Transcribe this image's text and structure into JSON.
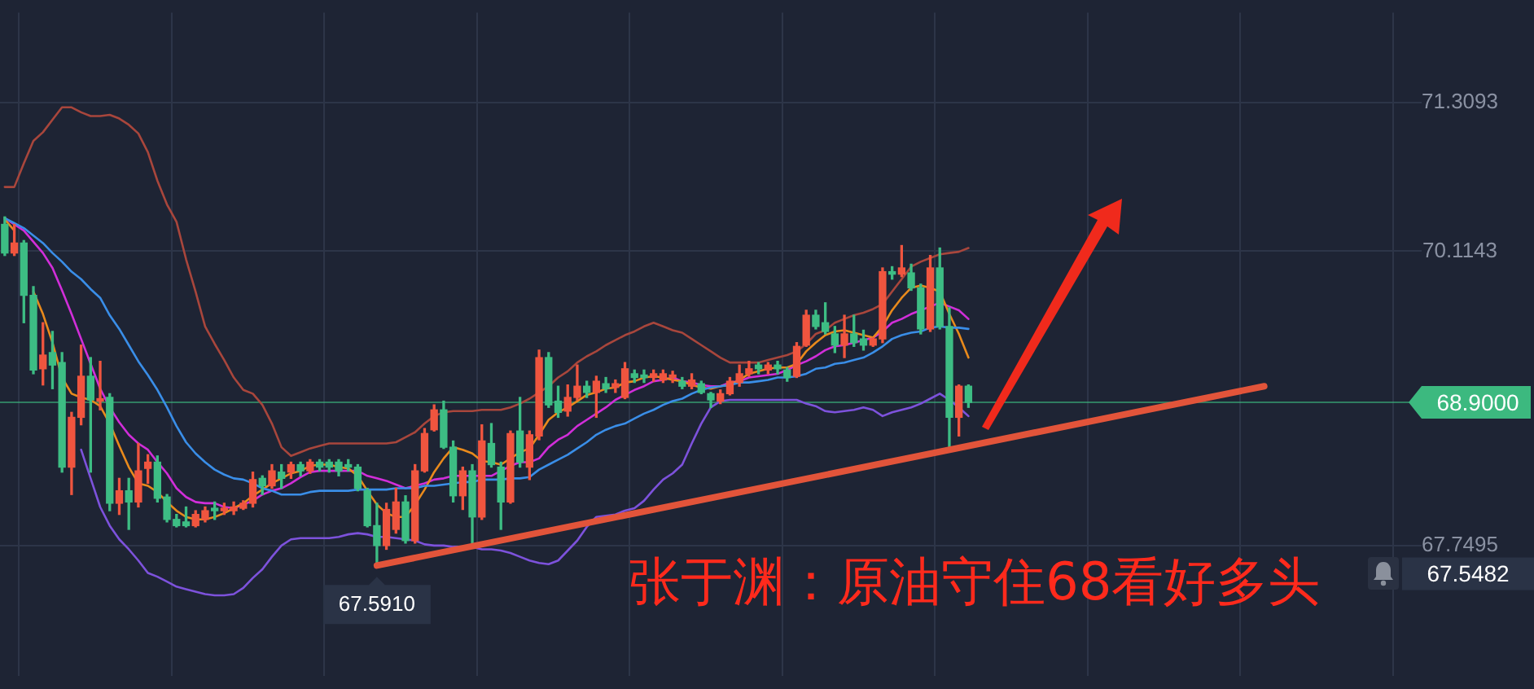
{
  "chart_data": {
    "type": "candlestick",
    "title": "张于渊：原油守住68看好多头",
    "categories": [
      null,
      null,
      null,
      null,
      null,
      null,
      null,
      null,
      null,
      null,
      null,
      null,
      null,
      null,
      null,
      null,
      null,
      null,
      null,
      null,
      null,
      null,
      null,
      null,
      null,
      null,
      null,
      null,
      null,
      null,
      null,
      null,
      null,
      null,
      null,
      null,
      null,
      null,
      null,
      null,
      null,
      null,
      null,
      null,
      null,
      null,
      null,
      null,
      null,
      null,
      null,
      null,
      null,
      null,
      null,
      null,
      null,
      null,
      null,
      null,
      null,
      null,
      null,
      null,
      null,
      null,
      null,
      null,
      null,
      null,
      null,
      null,
      null,
      null,
      null,
      null,
      null,
      null,
      null,
      null,
      null,
      null,
      null,
      null,
      null,
      null,
      null,
      null,
      null,
      null,
      null,
      null,
      null,
      null,
      null,
      null,
      null,
      null,
      null,
      null,
      null,
      null,
      null,
      null,
      null,
      null,
      null,
      null,
      null,
      null,
      null,
      null,
      null,
      null,
      null,
      null,
      null,
      null,
      null,
      null,
      null,
      null,
      null,
      null,
      null,
      null,
      null,
      null,
      null,
      null,
      null,
      null,
      null,
      null,
      null,
      null,
      null,
      null,
      null,
      null,
      null,
      null,
      null,
      null,
      null,
      null,
      null,
      null,
      null
    ],
    "ohlc": [
      [
        70.33,
        70.39,
        70.08,
        70.1
      ],
      [
        70.1,
        70.33,
        70.08,
        70.18
      ],
      [
        70.18,
        70.2,
        69.54,
        69.76
      ],
      [
        69.76,
        69.83,
        69.13,
        69.16
      ],
      [
        69.17,
        69.54,
        69.04,
        69.28
      ],
      [
        69.3,
        69.47,
        69.01,
        69.2
      ],
      [
        69.22,
        69.3,
        68.34,
        68.38
      ],
      [
        68.38,
        68.82,
        68.16,
        68.78
      ],
      [
        68.78,
        69.36,
        68.72,
        69.11
      ],
      [
        69.11,
        69.26,
        68.34,
        68.92
      ],
      [
        68.91,
        69.23,
        68.84,
        68.93
      ],
      [
        68.94,
        68.97,
        68.03,
        68.09
      ],
      [
        68.09,
        68.29,
        68.0,
        68.19
      ],
      [
        68.19,
        68.29,
        67.88,
        68.1
      ],
      [
        68.1,
        68.57,
        68.06,
        68.35
      ],
      [
        68.37,
        68.48,
        68.25,
        68.42
      ],
      [
        68.42,
        68.47,
        68.1,
        68.13
      ],
      [
        68.14,
        68.16,
        67.94,
        67.96
      ],
      [
        67.96,
        68.0,
        67.9,
        67.91
      ],
      [
        67.94,
        68.06,
        67.9,
        67.91
      ],
      [
        67.91,
        68.03,
        67.9,
        68.0
      ],
      [
        67.96,
        68.06,
        67.94,
        68.03
      ],
      [
        68.05,
        68.1,
        67.96,
        68.03
      ],
      [
        68.03,
        68.09,
        68.0,
        68.05
      ],
      [
        68.03,
        68.1,
        68.0,
        68.06
      ],
      [
        68.05,
        68.11,
        68.04,
        68.09
      ],
      [
        68.09,
        68.34,
        68.06,
        68.28
      ],
      [
        68.29,
        68.31,
        68.16,
        68.23
      ],
      [
        68.23,
        68.4,
        68.21,
        68.35
      ],
      [
        68.34,
        68.4,
        68.21,
        68.29
      ],
      [
        68.34,
        68.42,
        68.29,
        68.4
      ],
      [
        68.4,
        68.42,
        68.31,
        68.35
      ],
      [
        68.35,
        68.44,
        68.33,
        68.42
      ],
      [
        68.42,
        68.44,
        68.35,
        68.38
      ],
      [
        68.42,
        68.44,
        68.34,
        68.38
      ],
      [
        68.42,
        68.44,
        68.31,
        68.35
      ],
      [
        68.4,
        68.44,
        68.35,
        68.38
      ],
      [
        68.38,
        68.4,
        68.19,
        68.21
      ],
      [
        68.19,
        68.21,
        67.9,
        67.91
      ],
      [
        67.91,
        68.09,
        67.591,
        67.75
      ],
      [
        67.75,
        68.09,
        67.72,
        68.04
      ],
      [
        67.88,
        68.21,
        67.85,
        68.1
      ],
      [
        68.1,
        68.15,
        67.77,
        67.79
      ],
      [
        67.79,
        68.4,
        67.77,
        68.35
      ],
      [
        68.35,
        68.69,
        68.34,
        68.65
      ],
      [
        68.68,
        68.88,
        68.67,
        68.84
      ],
      [
        68.84,
        68.91,
        68.53,
        68.54
      ],
      [
        68.54,
        68.59,
        68.1,
        68.15
      ],
      [
        68.15,
        68.38,
        68.04,
        68.35
      ],
      [
        68.35,
        68.4,
        67.75,
        67.98
      ],
      [
        67.98,
        68.72,
        67.96,
        68.59
      ],
      [
        68.57,
        68.73,
        68.38,
        68.4
      ],
      [
        68.38,
        68.42,
        67.88,
        68.1
      ],
      [
        68.1,
        68.67,
        68.09,
        68.65
      ],
      [
        68.67,
        68.94,
        68.38,
        68.42
      ],
      [
        68.38,
        68.67,
        68.28,
        68.64
      ],
      [
        68.63,
        69.32,
        68.6,
        69.26
      ],
      [
        69.26,
        69.3,
        68.86,
        68.88
      ],
      [
        68.91,
        69.03,
        68.78,
        68.82
      ],
      [
        68.83,
        69.04,
        68.79,
        68.94
      ],
      [
        68.94,
        69.2,
        68.92,
        69.03
      ],
      [
        69.03,
        69.07,
        68.94,
        68.98
      ],
      [
        68.98,
        69.11,
        68.78,
        69.07
      ],
      [
        69.05,
        69.1,
        68.98,
        69.01
      ],
      [
        69.02,
        69.08,
        68.98,
        69.05
      ],
      [
        68.94,
        69.22,
        68.93,
        69.17
      ],
      [
        69.13,
        69.16,
        69.06,
        69.1
      ],
      [
        69.12,
        69.16,
        69.06,
        69.1
      ],
      [
        69.1,
        69.16,
        69.07,
        69.13
      ],
      [
        69.08,
        69.16,
        69.06,
        69.13
      ],
      [
        69.1,
        69.15,
        69.06,
        69.12
      ],
      [
        69.07,
        69.1,
        69.01,
        69.03
      ],
      [
        69.03,
        69.13,
        69.01,
        69.08
      ],
      [
        69.05,
        69.07,
        68.97,
        68.98
      ],
      [
        68.97,
        68.98,
        68.86,
        68.92
      ],
      [
        68.91,
        69.0,
        68.89,
        68.97
      ],
      [
        68.97,
        69.1,
        68.96,
        69.07
      ],
      [
        69.06,
        69.2,
        69.03,
        69.13
      ],
      [
        69.13,
        69.23,
        69.11,
        69.17
      ],
      [
        69.2,
        69.22,
        69.13,
        69.17
      ],
      [
        69.16,
        69.22,
        69.13,
        69.2
      ],
      [
        69.2,
        69.23,
        69.13,
        69.17
      ],
      [
        69.16,
        69.18,
        69.07,
        69.1
      ],
      [
        69.11,
        69.38,
        69.1,
        69.35
      ],
      [
        69.36,
        69.64,
        69.35,
        69.6
      ],
      [
        69.6,
        69.64,
        69.49,
        69.51
      ],
      [
        69.54,
        69.7,
        69.45,
        69.47
      ],
      [
        69.45,
        69.51,
        69.3,
        69.36
      ],
      [
        69.36,
        69.6,
        69.26,
        69.45
      ],
      [
        69.45,
        69.6,
        69.35,
        69.38
      ],
      [
        69.41,
        69.48,
        69.32,
        69.36
      ],
      [
        69.36,
        69.42,
        69.35,
        69.41
      ],
      [
        69.41,
        69.98,
        69.38,
        69.95
      ],
      [
        69.95,
        69.99,
        69.89,
        69.93
      ],
      [
        69.93,
        70.16,
        69.91,
        69.98
      ],
      [
        69.94,
        70.01,
        69.8,
        69.82
      ],
      [
        69.82,
        69.85,
        69.45,
        69.49
      ],
      [
        69.49,
        70.08,
        69.47,
        69.98
      ],
      [
        69.98,
        70.14,
        69.49,
        69.51
      ],
      [
        69.51,
        69.66,
        68.54,
        68.78
      ],
      [
        68.78,
        69.04,
        68.63,
        69.03
      ],
      [
        69.03,
        69.04,
        68.86,
        68.9
      ],
      null,
      null,
      null,
      null,
      null,
      null,
      null,
      null,
      null,
      null,
      null,
      null,
      null,
      null,
      null,
      null,
      null,
      null,
      null,
      null,
      null,
      null,
      null,
      null,
      null,
      null,
      null,
      null,
      null,
      null,
      null,
      null,
      null,
      null,
      null,
      null,
      null,
      null,
      null,
      null,
      null,
      null,
      null,
      null,
      null,
      null,
      null
    ],
    "colors": [
      "#3dbd84",
      "#f0553f",
      "#3dbd84",
      "#3dbd84",
      "#f0553f",
      "#3dbd84",
      "#3dbd84",
      "#f0553f",
      "#f0553f",
      "#3dbd84",
      "#f0553f",
      "#3dbd84",
      "#f0553f",
      "#3dbd84",
      "#f0553f",
      "#f0553f",
      "#3dbd84",
      "#3dbd84",
      "#3dbd84",
      "#3dbd84",
      "#f0553f",
      "#f0553f",
      "#3dbd84",
      "#f0553f",
      "#f0553f",
      "#f0553f",
      "#f0553f",
      "#3dbd84",
      "#f0553f",
      "#3dbd84",
      "#f0553f",
      "#3dbd84",
      "#f0553f",
      "#3dbd84",
      "#3dbd84",
      "#3dbd84",
      "#3dbd84",
      "#3dbd84",
      "#3dbd84",
      "#3dbd84",
      "#f0553f",
      "#f0553f",
      "#3dbd84",
      "#f0553f",
      "#f0553f",
      "#f0553f",
      "#3dbd84",
      "#3dbd84",
      "#f0553f",
      "#3dbd84",
      "#f0553f",
      "#3dbd84",
      "#3dbd84",
      "#f0553f",
      "#3dbd84",
      "#f0553f",
      "#f0553f",
      "#3dbd84",
      "#3dbd84",
      "#f0553f",
      "#f0553f",
      "#3dbd84",
      "#f0553f",
      "#3dbd84",
      "#f0553f",
      "#f0553f",
      "#3dbd84",
      "#3dbd84",
      "#f0553f",
      "#f0553f",
      "#f0553f",
      "#3dbd84",
      "#f0553f",
      "#3dbd84",
      "#3dbd84",
      "#f0553f",
      "#f0553f",
      "#f0553f",
      "#f0553f",
      "#3dbd84",
      "#f0553f",
      "#3dbd84",
      "#3dbd84",
      "#f0553f",
      "#f0553f",
      "#3dbd84",
      "#3dbd84",
      "#3dbd84",
      "#f0553f",
      "#3dbd84",
      "#3dbd84",
      "#f0553f",
      "#f0553f",
      "#3dbd84",
      "#f0553f",
      "#3dbd84",
      "#3dbd84",
      "#f0553f",
      "#3dbd84",
      "#3dbd84",
      "#f0553f",
      "#3dbd84",
      null,
      null,
      null,
      null,
      null,
      null,
      null,
      null,
      null,
      null,
      null,
      null,
      null,
      null,
      null,
      null,
      null,
      null,
      null,
      null,
      null,
      null,
      null,
      null,
      null,
      null,
      null,
      null,
      null,
      null,
      null,
      null,
      null,
      null,
      null,
      null,
      null,
      null,
      null,
      null,
      null,
      null,
      null,
      null,
      null,
      null,
      null
    ],
    "series": [
      {
        "type": "line",
        "color": "#a8463c",
        "values": [
          70.63,
          70.63,
          70.82,
          71.0,
          71.07,
          71.17,
          71.27,
          71.27,
          71.23,
          71.2,
          71.2,
          71.21,
          71.18,
          71.13,
          71.06,
          70.91,
          70.68,
          70.49,
          70.35,
          70.05,
          69.79,
          69.51,
          69.37,
          69.24,
          69.1,
          69.0,
          68.97,
          68.88,
          68.73,
          68.54,
          68.47,
          68.5,
          68.53,
          68.55,
          68.57,
          68.57,
          68.57,
          68.57,
          68.57,
          68.57,
          68.57,
          68.58,
          68.62,
          68.66,
          68.73,
          68.79,
          68.82,
          68.83,
          68.83,
          68.83,
          68.84,
          68.84,
          68.84,
          68.86,
          68.89,
          68.93,
          68.98,
          69.03,
          69.1,
          69.15,
          69.22,
          69.27,
          69.31,
          69.36,
          69.4,
          69.44,
          69.47,
          69.51,
          69.54,
          69.51,
          69.48,
          69.46,
          69.41,
          69.36,
          69.31,
          69.26,
          69.22,
          69.22,
          69.22,
          69.22,
          69.24,
          69.26,
          69.28,
          69.31,
          69.37,
          69.45,
          69.48,
          69.54,
          69.57,
          69.6,
          69.62,
          69.65,
          69.69,
          69.79,
          69.89,
          69.99,
          70.03,
          70.06,
          70.09,
          70.1,
          70.11,
          70.14,
          null,
          null,
          null,
          null,
          null,
          null,
          null,
          null,
          null,
          null,
          null,
          null,
          null,
          null,
          null,
          null,
          null,
          null,
          null,
          null,
          null,
          null,
          null,
          null,
          null,
          null,
          null,
          null,
          null,
          null,
          null,
          null,
          null,
          null,
          null,
          null,
          null,
          null,
          null,
          null,
          null,
          null,
          null,
          null,
          null,
          null,
          null
        ]
      },
      {
        "type": "line",
        "color": "#3a8ee8",
        "values": [
          70.38,
          70.34,
          70.3,
          70.24,
          70.18,
          70.1,
          70.03,
          69.95,
          69.89,
          69.81,
          69.74,
          69.6,
          69.49,
          69.36,
          69.23,
          69.12,
          69.0,
          68.86,
          68.71,
          68.58,
          68.49,
          68.42,
          68.36,
          68.32,
          68.29,
          68.28,
          68.25,
          68.21,
          68.19,
          68.16,
          68.16,
          68.16,
          68.18,
          68.19,
          68.19,
          68.19,
          68.19,
          68.2,
          68.2,
          68.2,
          68.2,
          68.21,
          68.21,
          68.21,
          68.23,
          68.23,
          68.24,
          68.25,
          68.26,
          68.26,
          68.28,
          68.28,
          68.28,
          68.29,
          68.29,
          68.3,
          68.36,
          68.4,
          68.44,
          68.48,
          68.53,
          68.58,
          68.64,
          68.68,
          68.71,
          68.73,
          68.77,
          68.81,
          68.84,
          68.88,
          68.91,
          68.93,
          68.97,
          69.0,
          69.02,
          69.03,
          69.04,
          69.06,
          69.06,
          69.07,
          69.08,
          69.1,
          69.1,
          69.11,
          69.13,
          69.17,
          69.18,
          69.21,
          69.22,
          69.24,
          69.26,
          69.3,
          69.35,
          69.41,
          69.44,
          69.46,
          69.47,
          69.5,
          69.51,
          69.5,
          69.5,
          69.49,
          null,
          null,
          null,
          null,
          null,
          null,
          null,
          null,
          null,
          null,
          null,
          null,
          null,
          null,
          null,
          null,
          null,
          null,
          null,
          null,
          null,
          null,
          null,
          null,
          null,
          null,
          null,
          null,
          null,
          null,
          null,
          null,
          null,
          null,
          null,
          null,
          null,
          null,
          null,
          null,
          null,
          null,
          null,
          null,
          null,
          null,
          null
        ]
      },
      {
        "type": "line",
        "color": "#7d52dc",
        "values": [
          null,
          null,
          null,
          null,
          null,
          null,
          null,
          null,
          68.52,
          68.29,
          68.06,
          67.91,
          67.8,
          67.72,
          67.63,
          67.53,
          67.5,
          67.46,
          67.42,
          67.4,
          67.38,
          67.36,
          67.35,
          67.35,
          67.36,
          67.41,
          67.49,
          67.56,
          67.66,
          67.75,
          67.8,
          67.81,
          67.81,
          67.81,
          67.81,
          67.82,
          67.84,
          67.85,
          67.84,
          67.82,
          67.82,
          67.81,
          67.8,
          67.79,
          67.76,
          67.75,
          67.75,
          67.74,
          67.74,
          67.74,
          67.72,
          67.72,
          67.71,
          67.69,
          67.66,
          67.63,
          67.61,
          67.6,
          67.63,
          67.71,
          67.79,
          67.9,
          67.98,
          67.99,
          68.0,
          68.03,
          68.05,
          68.11,
          68.2,
          68.28,
          68.33,
          68.4,
          68.57,
          68.73,
          68.86,
          68.91,
          68.92,
          68.92,
          68.92,
          68.92,
          68.92,
          68.92,
          68.92,
          68.92,
          68.89,
          68.87,
          68.83,
          68.82,
          68.83,
          68.84,
          68.86,
          68.84,
          68.79,
          68.82,
          68.84,
          68.86,
          68.89,
          68.93,
          68.97,
          68.92,
          68.86,
          68.79,
          null,
          null,
          null,
          null,
          null,
          null,
          null,
          null,
          null,
          null,
          null,
          null,
          null,
          null,
          null,
          null,
          null,
          null,
          null,
          null,
          null,
          null,
          null,
          null,
          null,
          null,
          null,
          null,
          null,
          null,
          null,
          null,
          null,
          null,
          null,
          null,
          null,
          null,
          null,
          null,
          null,
          null,
          null,
          null,
          null,
          null,
          null
        ]
      },
      {
        "type": "line",
        "color": "#e98a1c",
        "values": [
          70.37,
          70.28,
          null,
          69.79,
          69.61,
          69.38,
          69.1,
          68.97,
          68.94,
          68.92,
          68.87,
          68.73,
          68.55,
          68.38,
          68.25,
          68.23,
          68.18,
          68.1,
          68.03,
          67.98,
          67.96,
          67.96,
          67.98,
          68.01,
          68.05,
          68.09,
          68.15,
          68.2,
          68.25,
          68.29,
          68.33,
          68.35,
          68.39,
          68.4,
          68.4,
          68.38,
          68.37,
          68.31,
          68.19,
          68.08,
          68.01,
          67.98,
          67.98,
          68.08,
          68.2,
          68.34,
          68.45,
          68.54,
          68.52,
          68.49,
          68.43,
          68.42,
          68.4,
          68.45,
          68.5,
          68.53,
          68.64,
          68.76,
          68.82,
          68.86,
          68.91,
          68.96,
          68.98,
          69.01,
          69.02,
          69.06,
          69.07,
          69.1,
          69.11,
          69.1,
          69.08,
          69.07,
          69.04,
          69.02,
          69.01,
          69.03,
          69.04,
          69.08,
          69.13,
          69.15,
          69.17,
          69.18,
          69.18,
          69.21,
          69.31,
          69.38,
          69.44,
          69.47,
          69.48,
          69.46,
          69.44,
          69.42,
          69.51,
          69.64,
          69.74,
          69.82,
          69.84,
          69.82,
          69.79,
          69.61,
          69.45,
          69.26,
          null,
          null,
          null,
          null,
          null,
          null,
          null,
          null,
          null,
          null,
          null,
          null,
          null,
          null,
          null,
          null,
          null,
          null,
          null,
          null,
          null,
          null,
          null,
          null,
          null,
          null,
          null,
          null,
          null,
          null,
          null,
          null,
          null,
          null,
          null,
          null,
          null,
          null,
          null,
          null,
          null,
          null,
          null,
          null,
          null,
          null,
          null
        ]
      },
      {
        "type": "line",
        "color": "#d12ed9",
        "values": [
          70.38,
          70.33,
          70.28,
          70.19,
          70.1,
          69.98,
          69.8,
          69.61,
          69.41,
          69.21,
          69.01,
          68.86,
          68.74,
          68.64,
          68.57,
          68.52,
          68.42,
          68.33,
          68.21,
          68.14,
          68.1,
          68.09,
          68.09,
          68.06,
          68.05,
          68.08,
          68.11,
          68.16,
          68.19,
          68.21,
          68.25,
          68.3,
          68.34,
          68.35,
          68.35,
          68.35,
          68.35,
          68.35,
          68.31,
          68.29,
          68.27,
          68.24,
          68.21,
          68.23,
          68.25,
          68.28,
          68.29,
          68.31,
          68.31,
          68.31,
          68.31,
          68.31,
          68.35,
          68.39,
          68.42,
          68.42,
          68.45,
          68.54,
          68.6,
          68.64,
          68.71,
          68.76,
          68.81,
          68.86,
          68.92,
          68.96,
          69.0,
          69.03,
          69.07,
          69.08,
          69.1,
          69.07,
          69.06,
          69.04,
          69.03,
          69.03,
          69.06,
          69.07,
          69.1,
          69.11,
          69.12,
          69.13,
          69.16,
          69.2,
          69.23,
          69.27,
          69.32,
          69.35,
          69.36,
          69.38,
          69.4,
          69.42,
          69.47,
          69.54,
          69.57,
          69.61,
          69.64,
          69.67,
          69.7,
          69.67,
          69.64,
          69.57,
          null,
          null,
          null,
          null,
          null,
          null,
          null,
          null,
          null,
          null,
          null,
          null,
          null,
          null,
          null,
          null,
          null,
          null,
          null,
          null,
          null,
          null,
          null,
          null,
          null,
          null,
          null,
          null,
          null,
          null,
          null,
          null,
          null,
          null,
          null,
          null,
          null,
          null,
          null,
          null,
          null,
          null,
          null,
          null,
          null,
          null,
          null
        ]
      },
      {
        "type": "line",
        "color": "#e2543a",
        "values": [
          null,
          null,
          null,
          null,
          null,
          null,
          null,
          null,
          null,
          null,
          null,
          null,
          null,
          null,
          null,
          null,
          null,
          null,
          null,
          null,
          null,
          null,
          null,
          null,
          null,
          null,
          null,
          null,
          null,
          null,
          null,
          null,
          null,
          null,
          null,
          null,
          null,
          null,
          null,
          67.59,
          null,
          null,
          null,
          null,
          null,
          null,
          null,
          null,
          null,
          null,
          null,
          null,
          null,
          null,
          null,
          null,
          null,
          null,
          null,
          null,
          null,
          null,
          null,
          null,
          null,
          null,
          null,
          null,
          null,
          null,
          null,
          null,
          null,
          null,
          null,
          null,
          null,
          null,
          null,
          null,
          null,
          null,
          null,
          null,
          null,
          null,
          null,
          null,
          null,
          null,
          null,
          null,
          null,
          null,
          null,
          null,
          null,
          null,
          null,
          null,
          null,
          null,
          null,
          null,
          null,
          null,
          null,
          null,
          null,
          null,
          null,
          null,
          null,
          null,
          null,
          null,
          null,
          null,
          null,
          null,
          null,
          null,
          null,
          null,
          null,
          null,
          null,
          null,
          null,
          null,
          null,
          null,
          69.03,
          null,
          null,
          null,
          null,
          null,
          null,
          null,
          null,
          null,
          null,
          null,
          null,
          null,
          null,
          null,
          null
        ]
      }
    ],
    "ylim": [
      66.7,
      72.03
    ],
    "yticks": [
      67.7495,
      70.1143,
      71.3093
    ],
    "ref_lines": [
      {
        "axis": "y",
        "value": 68.9,
        "label": "68.9000",
        "color": "#3cb97f"
      }
    ],
    "annotations": [
      {
        "text": "67.5910",
        "y": 67.591
      },
      "67.5482"
    ],
    "grid": true,
    "tick_labels": "y",
    "marker": "none"
  }
}
